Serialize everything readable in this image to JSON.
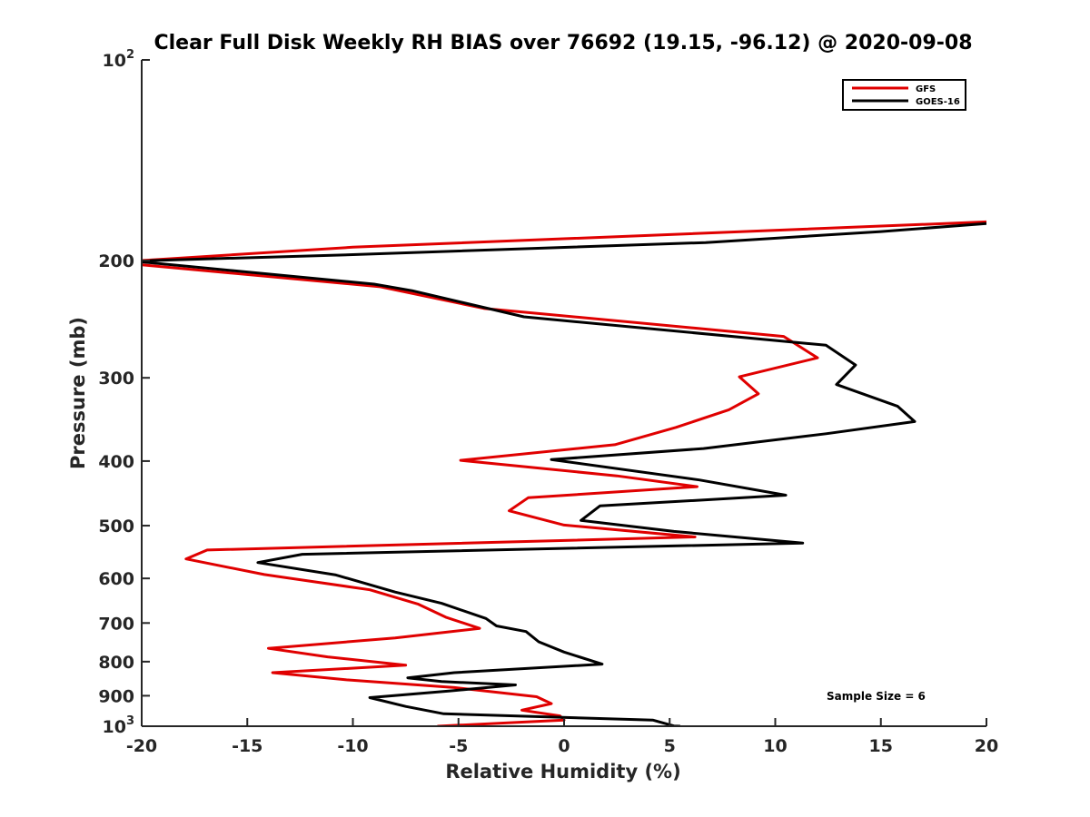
{
  "chart_data": {
    "type": "line",
    "title": "Clear Full Disk Weekly RH BIAS over 76692 (19.15, -96.12) @ 2020-09-08",
    "xlabel": "Relative Humidity (%)",
    "ylabel": "Pressure (mb)",
    "xlim": [
      -20,
      20
    ],
    "ylim": [
      100,
      1000
    ],
    "y_scale": "log",
    "y_reversed": true,
    "x_ticks": [
      "-20",
      "-15",
      "-10",
      "-5",
      "0",
      "5",
      "10",
      "15",
      "20"
    ],
    "y_ticks": [
      {
        "value": 100,
        "base": "10",
        "exp": "2"
      },
      {
        "value": 200,
        "label": "200"
      },
      {
        "value": 300,
        "label": "300"
      },
      {
        "value": 400,
        "label": "400"
      },
      {
        "value": 500,
        "label": "500"
      },
      {
        "value": 600,
        "label": "600"
      },
      {
        "value": 700,
        "label": "700"
      },
      {
        "value": 800,
        "label": "800"
      },
      {
        "value": 900,
        "label": "900"
      },
      {
        "value": 1000,
        "base": "10",
        "exp": "3"
      }
    ],
    "legend_position": "top-right",
    "annotation": "Sample Size = 6",
    "series": [
      {
        "name": "GFS",
        "color": "#e00000",
        "points": [
          [
            20,
            175
          ],
          [
            -10,
            191
          ],
          [
            -20,
            200
          ],
          [
            -20,
            203
          ],
          [
            -8.7,
            219
          ],
          [
            -3.8,
            236
          ],
          [
            10.4,
            260
          ],
          [
            12,
            280
          ],
          [
            8.3,
            299
          ],
          [
            9.2,
            317
          ],
          [
            7.8,
            335
          ],
          [
            5.3,
            356
          ],
          [
            2.4,
            378
          ],
          [
            -4.9,
            399
          ],
          [
            2.5,
            421
          ],
          [
            6.3,
            437
          ],
          [
            -1.7,
            454
          ],
          [
            -2.6,
            475
          ],
          [
            0,
            499
          ],
          [
            6.2,
            520
          ],
          [
            -16.9,
            544
          ],
          [
            -17.9,
            561
          ],
          [
            -14.2,
            592
          ],
          [
            -9.2,
            624
          ],
          [
            -6.9,
            656
          ],
          [
            -5.6,
            686
          ],
          [
            -4,
            713
          ],
          [
            -8,
            737
          ],
          [
            -14,
            764
          ],
          [
            -11.2,
            787
          ],
          [
            -7.5,
            810
          ],
          [
            -13.8,
            831
          ],
          [
            -10.3,
            852
          ],
          [
            -5.2,
            875
          ],
          [
            -1.3,
            903
          ],
          [
            -0.6,
            925
          ],
          [
            -2,
            946
          ],
          [
            -0.2,
            965
          ],
          [
            0,
            979
          ],
          [
            -6,
            1000
          ]
        ]
      },
      {
        "name": "GOES-16",
        "color": "#000000",
        "points": [
          [
            20,
            176
          ],
          [
            15,
            181
          ],
          [
            6.7,
            188
          ],
          [
            -10,
            196
          ],
          [
            -19.5,
            200
          ],
          [
            -20,
            201
          ],
          [
            -9,
            217
          ],
          [
            -7.2,
            222
          ],
          [
            -1.9,
            243
          ],
          [
            12.4,
            268
          ],
          [
            13.8,
            287
          ],
          [
            12.9,
            307
          ],
          [
            15.8,
            331
          ],
          [
            16.6,
            349
          ],
          [
            12.4,
            364
          ],
          [
            6.6,
            383
          ],
          [
            -0.6,
            398
          ],
          [
            6.4,
            427
          ],
          [
            10.5,
            450
          ],
          [
            1.7,
            467
          ],
          [
            0.8,
            491
          ],
          [
            5.2,
            510
          ],
          [
            11.3,
            531
          ],
          [
            -12.4,
            552
          ],
          [
            -14.5,
            568
          ],
          [
            -10.8,
            593
          ],
          [
            -8,
            629
          ],
          [
            -5.8,
            654
          ],
          [
            -3.7,
            689
          ],
          [
            -3.2,
            707
          ],
          [
            -1.8,
            721
          ],
          [
            -1.2,
            747
          ],
          [
            0,
            774
          ],
          [
            1.8,
            807
          ],
          [
            -5.2,
            831
          ],
          [
            -7.4,
            846
          ],
          [
            -5.8,
            857
          ],
          [
            -2.3,
            867
          ],
          [
            -5.4,
            885
          ],
          [
            -9.2,
            906
          ],
          [
            -7.5,
            934
          ],
          [
            -5.7,
            958
          ],
          [
            4.2,
            979
          ],
          [
            5.2,
            999
          ],
          [
            5.5,
            1000
          ]
        ]
      }
    ]
  }
}
